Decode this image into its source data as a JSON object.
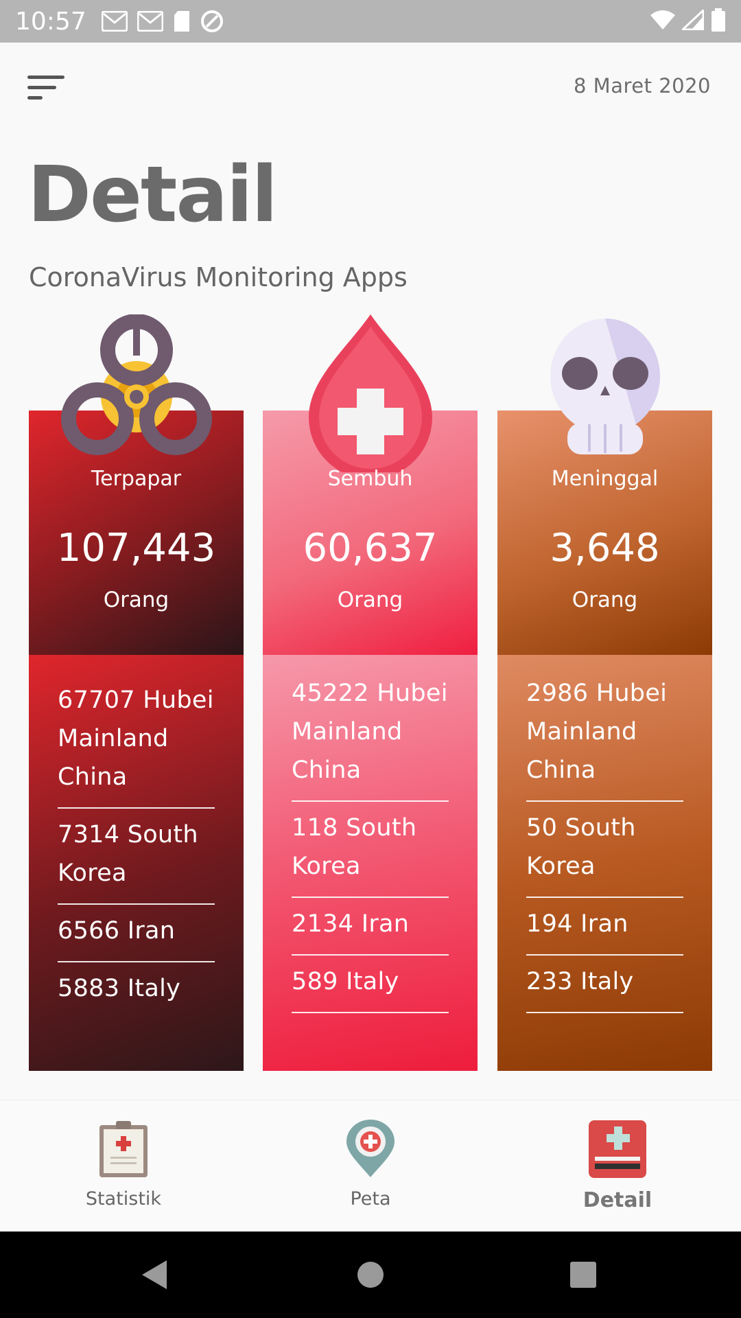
{
  "status_bar": {
    "time": "10:57"
  },
  "header": {
    "date": "8 Maret 2020",
    "title": "Detail",
    "subtitle": "CoronaVirus Monitoring Apps"
  },
  "cards": [
    {
      "label": "Terpapar",
      "count": "107,443",
      "unit": "Orang",
      "icon": "biohazard-icon",
      "regions": [
        "67707 Hubei Mainland China",
        "7314  South Korea",
        "6566  Iran",
        "5883  Italy"
      ]
    },
    {
      "label": "Sembuh",
      "count": "60,637",
      "unit": "Orang",
      "icon": "blood-drop-cross-icon",
      "regions": [
        "45222 Hubei Mainland China",
        "118  South Korea",
        "2134  Iran",
        "589  Italy"
      ]
    },
    {
      "label": "Meninggal",
      "count": "3,648",
      "unit": "Orang",
      "icon": "skull-icon",
      "regions": [
        "2986 Hubei Mainland China",
        "50  South Korea",
        "194  Iran",
        "233  Italy"
      ]
    }
  ],
  "bottom_nav": {
    "items": [
      {
        "label": "Statistik",
        "icon": "clipboard-icon",
        "active": false
      },
      {
        "label": "Peta",
        "icon": "map-pin-icon",
        "active": false
      },
      {
        "label": "Detail",
        "icon": "medical-kit-icon",
        "active": true
      }
    ]
  },
  "colors": {
    "terpapar": "#e0262c",
    "sembuh": "#f26a7c",
    "meninggal": "#c0652f"
  }
}
